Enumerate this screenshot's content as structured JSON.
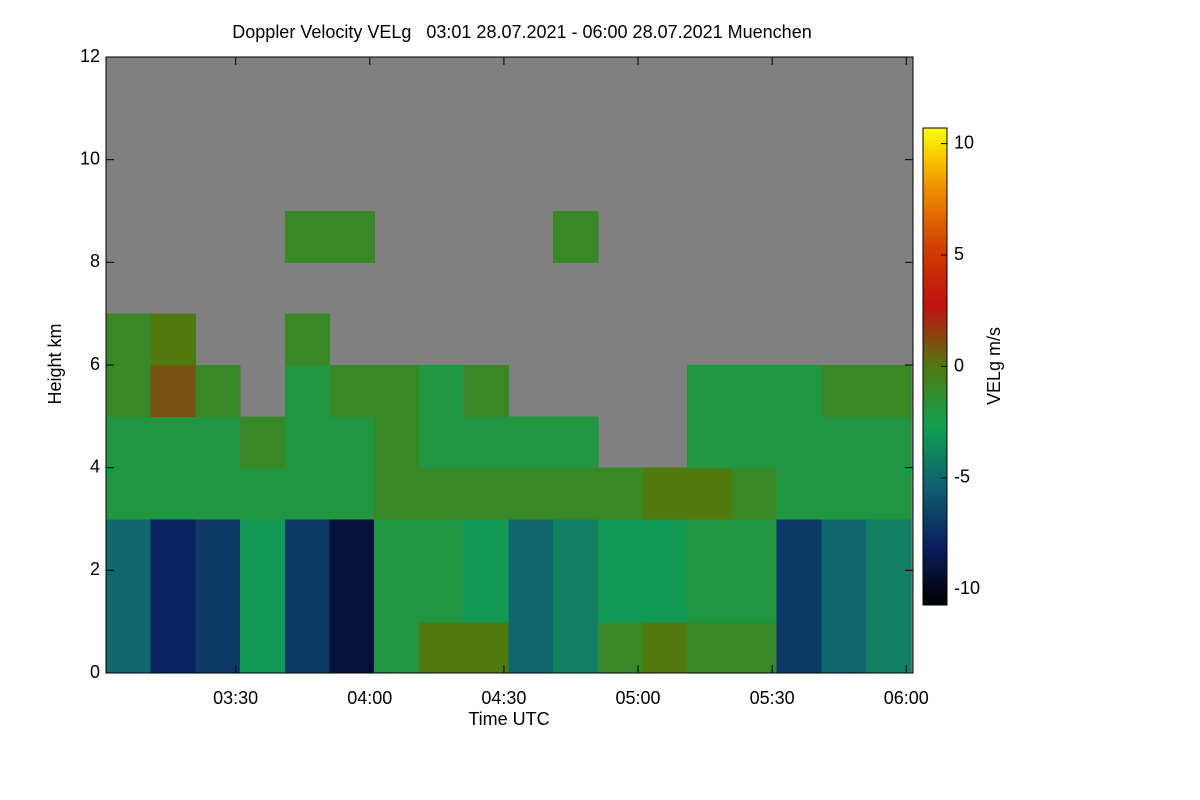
{
  "chart_data": {
    "type": "heatmap",
    "title": "Doppler Velocity VELg   03:01 28.07.2021 - 06:00 28.07.2021 Muenchen",
    "x_label": "Time UTC",
    "y_label": "Height km",
    "colorbar_label": "VELg m/s",
    "x": [
      3.1,
      3.2667,
      3.4333,
      3.6,
      3.7667,
      3.9333,
      4.1,
      4.2667,
      4.4333,
      4.6,
      4.7667,
      4.9333,
      5.1,
      5.2667,
      5.4333,
      5.6,
      5.7667,
      5.9333
    ],
    "y": [
      0.5,
      1.5,
      2.5,
      3.5,
      4.5,
      5.5,
      6.5,
      7.5,
      8.5,
      9.5,
      10.5,
      11.5
    ],
    "z": [
      [
        -5,
        -8,
        -7,
        -3,
        -7,
        -9,
        -2,
        0,
        0,
        -5,
        -4,
        -1,
        0,
        -1,
        -1,
        -7,
        -5,
        -4
      ],
      [
        -5,
        -8,
        -7,
        -3,
        -7,
        -9,
        -2,
        -2,
        -3,
        -5,
        -4,
        -3,
        -3,
        -2,
        -2,
        -7,
        -5,
        -4
      ],
      [
        -5,
        -8,
        -7,
        -3,
        -7,
        -9,
        -2,
        -2,
        -3,
        -5,
        -4,
        -3,
        -3,
        -2,
        -2,
        -7,
        -5,
        -4
      ],
      [
        -2,
        -2,
        -2,
        -2,
        -2,
        -2,
        -1,
        -1,
        -1,
        -1,
        -1,
        -1,
        0,
        0,
        -1,
        -2,
        -2,
        -2
      ],
      [
        -2,
        -2,
        -2,
        -1,
        -2,
        -2,
        -1,
        -2,
        -2,
        -2,
        -2,
        null,
        null,
        -2,
        -2,
        -2,
        -2,
        -2
      ],
      [
        -1,
        1,
        -1,
        null,
        -2,
        -1,
        -1,
        -2,
        -1,
        null,
        null,
        null,
        null,
        -2,
        -2,
        -2,
        -1,
        -1
      ],
      [
        -1,
        0,
        null,
        null,
        -1,
        null,
        null,
        null,
        null,
        null,
        null,
        null,
        null,
        null,
        null,
        null,
        null,
        null
      ],
      [
        null,
        null,
        null,
        null,
        null,
        null,
        null,
        null,
        null,
        null,
        null,
        null,
        null,
        null,
        null,
        null,
        null,
        null
      ],
      [
        null,
        null,
        null,
        null,
        -1,
        -1,
        null,
        null,
        null,
        null,
        -1,
        null,
        null,
        null,
        null,
        null,
        null,
        null
      ],
      [
        null,
        null,
        null,
        null,
        null,
        null,
        null,
        null,
        null,
        null,
        null,
        null,
        null,
        null,
        null,
        null,
        null,
        null
      ],
      [
        null,
        null,
        null,
        null,
        null,
        null,
        null,
        null,
        null,
        null,
        null,
        null,
        null,
        null,
        null,
        null,
        null,
        null
      ],
      [
        null,
        null,
        null,
        null,
        null,
        null,
        null,
        null,
        null,
        null,
        null,
        null,
        null,
        null,
        null,
        null,
        null,
        null
      ]
    ],
    "xlim": [
      3.0167,
      6.025
    ],
    "xticks": [
      {
        "value": 3.5,
        "label": "03:30"
      },
      {
        "value": 4.0,
        "label": "04:00"
      },
      {
        "value": 4.5,
        "label": "04:30"
      },
      {
        "value": 5.0,
        "label": "05:00"
      },
      {
        "value": 5.5,
        "label": "05:30"
      },
      {
        "value": 6.0,
        "label": "06:00"
      }
    ],
    "ylim": [
      0,
      12
    ],
    "yticks": [
      0,
      2,
      4,
      6,
      8,
      10,
      12
    ],
    "zlim": [
      -10.7,
      10.7
    ],
    "zticks": [
      -10,
      -5,
      0,
      5,
      10
    ],
    "colorscale": [
      "#000000",
      "#0a2060",
      "#106070",
      "#10a050",
      "#507a10",
      "#c01010",
      "#d04000",
      "#f09000",
      "#ffff00"
    ],
    "null_color": "#808080"
  }
}
